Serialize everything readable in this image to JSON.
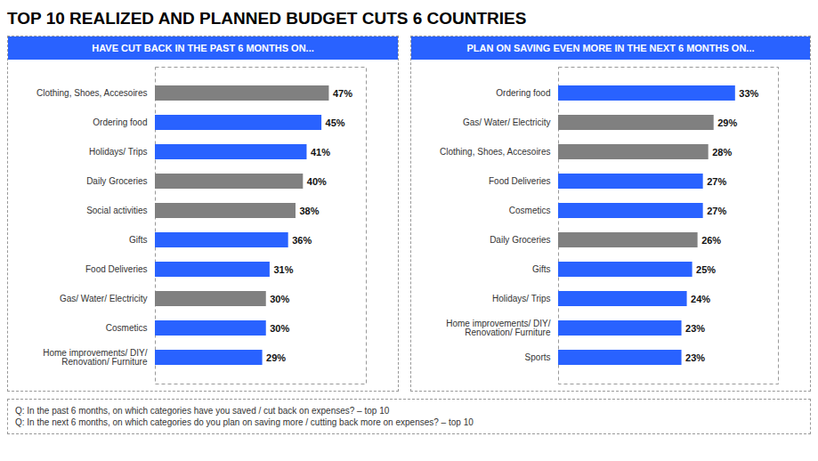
{
  "title": "TOP 10 REALIZED AND PLANNED BUDGET CUTS 6 COUNTRIES",
  "annotations": [
    "Q: In the past 6 months, on which categories have you saved / cut back on expenses? – top 10",
    "Q: In the next 6 months, on which categories do you plan on saving more / cutting back more on expenses? – top 10"
  ],
  "chart_data": [
    {
      "type": "bar",
      "orientation": "horizontal",
      "title": "HAVE CUT BACK IN THE PAST 6 MONTHS ON...",
      "categories": [
        "Clothing, Shoes, Accesoires",
        "Ordering food",
        "Holidays/ Trips",
        "Daily Groceries",
        "Social activities",
        "Gifts",
        "Food Deliveries",
        "Gas/ Water/ Electricity",
        "Cosmetics",
        "Home improvements/ DIY/\nRenovation/ Furniture"
      ],
      "values": [
        47,
        45,
        41,
        40,
        38,
        36,
        31,
        30,
        30,
        29
      ],
      "value_labels": [
        "47%",
        "45%",
        "41%",
        "40%",
        "38%",
        "36%",
        "31%",
        "30%",
        "30%",
        "29%"
      ],
      "colors": [
        "#808080",
        "#2962FF",
        "#2962FF",
        "#808080",
        "#808080",
        "#2962FF",
        "#2962FF",
        "#808080",
        "#2962FF",
        "#2962FF"
      ],
      "xlim": [
        0,
        57
      ],
      "grid": false,
      "data_labels": true,
      "tick_labels": "y"
    },
    {
      "type": "bar",
      "orientation": "horizontal",
      "title": "PLAN ON SAVING EVEN MORE IN THE NEXT 6 MONTHS ON...",
      "categories": [
        "Ordering food",
        "Gas/ Water/ Electricity",
        "Clothing, Shoes, Accesoires",
        "Food Deliveries",
        "Cosmetics",
        "Daily Groceries",
        "Gifts",
        "Holidays/ Trips",
        "Home improvements/ DIY/\nRenovation/ Furniture",
        "Sports"
      ],
      "values": [
        33,
        29,
        28,
        27,
        27,
        26,
        25,
        24,
        23,
        23
      ],
      "value_labels": [
        "33%",
        "29%",
        "28%",
        "27%",
        "27%",
        "26%",
        "25%",
        "24%",
        "23%",
        "23%"
      ],
      "colors": [
        "#2962FF",
        "#808080",
        "#808080",
        "#2962FF",
        "#2962FF",
        "#808080",
        "#2962FF",
        "#2962FF",
        "#2962FF",
        "#2962FF"
      ],
      "xlim": [
        0,
        41
      ],
      "grid": false,
      "data_labels": true,
      "tick_labels": "y"
    }
  ]
}
